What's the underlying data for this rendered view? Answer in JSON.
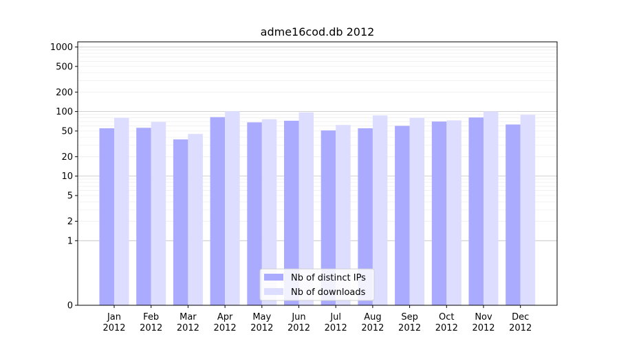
{
  "chart_data": {
    "type": "bar",
    "title": "adme16cod.db 2012",
    "xlabel": "",
    "ylabel": "",
    "y_scale": "symlog",
    "ylim": [
      0,
      1200
    ],
    "y_ticks": [
      {
        "value": 0,
        "label": "0"
      },
      {
        "value": 1,
        "label": "1"
      },
      {
        "value": 2,
        "label": "2"
      },
      {
        "value": 5,
        "label": "5"
      },
      {
        "value": 10,
        "label": "10"
      },
      {
        "value": 20,
        "label": "20"
      },
      {
        "value": 50,
        "label": "50"
      },
      {
        "value": 100,
        "label": "100"
      },
      {
        "value": 200,
        "label": "200"
      },
      {
        "value": 500,
        "label": "500"
      },
      {
        "value": 1000,
        "label": "1000"
      }
    ],
    "categories": [
      {
        "month": "Jan",
        "year": "2012"
      },
      {
        "month": "Feb",
        "year": "2012"
      },
      {
        "month": "Mar",
        "year": "2012"
      },
      {
        "month": "Apr",
        "year": "2012"
      },
      {
        "month": "May",
        "year": "2012"
      },
      {
        "month": "Jun",
        "year": "2012"
      },
      {
        "month": "Jul",
        "year": "2012"
      },
      {
        "month": "Aug",
        "year": "2012"
      },
      {
        "month": "Sep",
        "year": "2012"
      },
      {
        "month": "Oct",
        "year": "2012"
      },
      {
        "month": "Nov",
        "year": "2012"
      },
      {
        "month": "Dec",
        "year": "2012"
      }
    ],
    "series": [
      {
        "name": "Nb of distinct IPs",
        "color": "#aaaaff",
        "values": [
          55,
          56,
          37,
          82,
          68,
          72,
          51,
          55,
          60,
          70,
          81,
          63
        ]
      },
      {
        "name": "Nb of downloads",
        "color": "#ddddff",
        "values": [
          80,
          69,
          45,
          101,
          76,
          97,
          62,
          87,
          80,
          73,
          100,
          89
        ]
      }
    ],
    "grid": true,
    "legend_position": "bottom-center"
  }
}
